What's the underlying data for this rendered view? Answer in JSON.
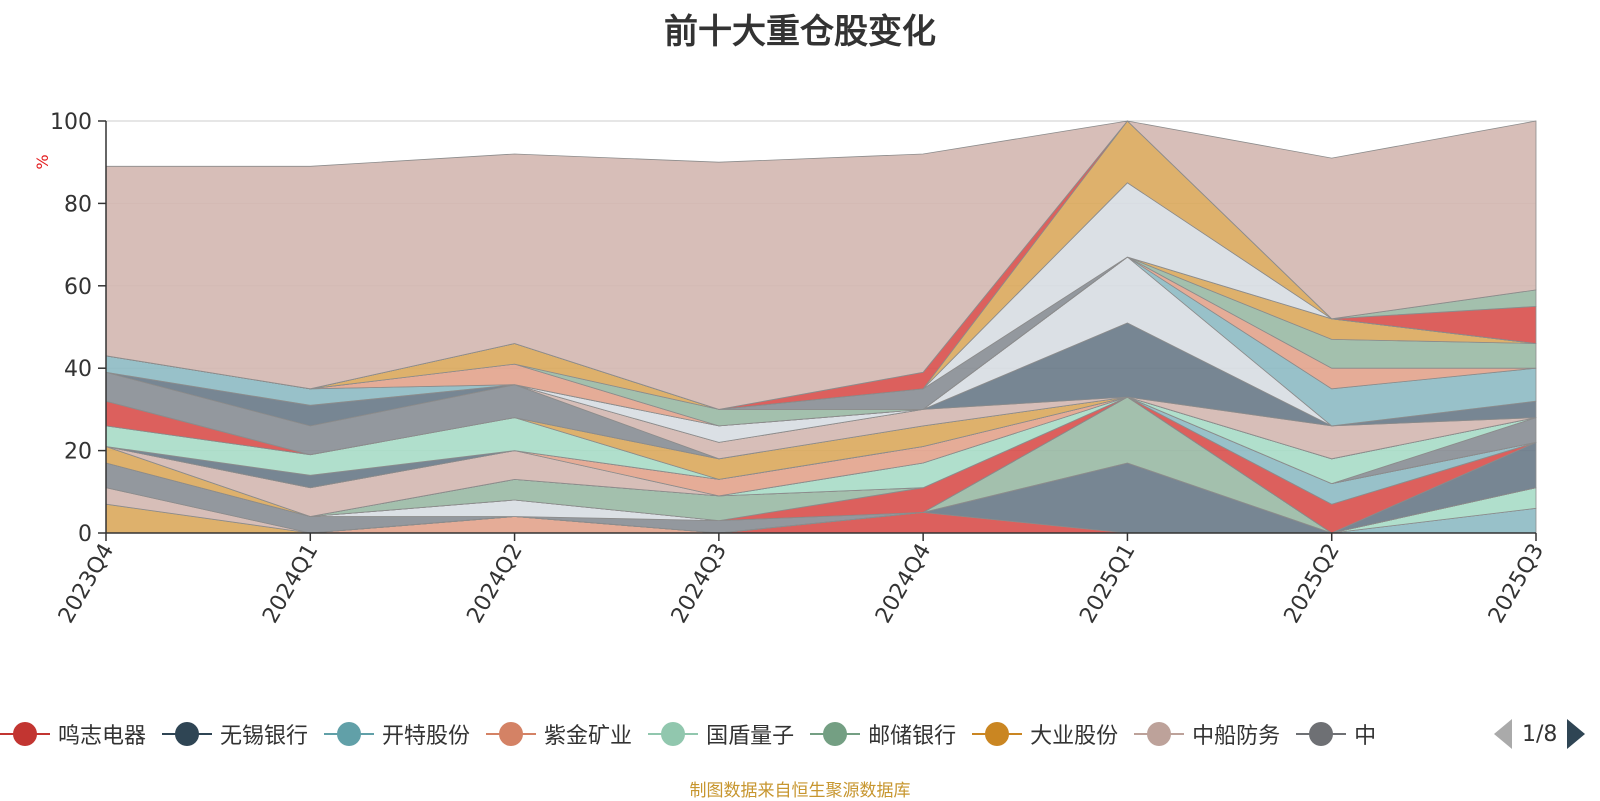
{
  "chart_data": {
    "type": "area",
    "stacked": true,
    "title": "前十大重仓股变化",
    "ylabel": "%",
    "ylim": [
      0,
      100
    ],
    "yticks": [
      0,
      20,
      40,
      60,
      80,
      100
    ],
    "grid": true,
    "categories": [
      "2023Q4",
      "2024Q1",
      "2024Q2",
      "2024Q3",
      "2024Q4",
      "2025Q1",
      "2025Q2",
      "2025Q3"
    ],
    "series": [
      {
        "name": "鸣志电器",
        "color": "#d9534f",
        "values": [
          0,
          0,
          0,
          0,
          5,
          0,
          0,
          0
        ]
      },
      {
        "name": "无锡银行",
        "color": "#6b7c8a",
        "values": [
          0,
          0,
          0,
          0,
          0,
          17,
          0,
          0
        ]
      },
      {
        "name": "开特股份",
        "color": "#8fbcc4",
        "values": [
          0,
          0,
          0,
          0,
          0,
          0,
          0,
          6
        ]
      },
      {
        "name": "紫金矿业",
        "color": "#e3a58e",
        "values": [
          0,
          0,
          4,
          0,
          0,
          0,
          0,
          0
        ]
      },
      {
        "name": "国盾量子",
        "color": "#a9dcc8",
        "values": [
          0,
          0,
          0,
          0,
          0,
          0,
          0,
          5
        ]
      },
      {
        "name": "邮储银行",
        "color": "#9bbba6",
        "values": [
          0,
          0,
          0,
          0,
          0,
          16,
          0,
          0
        ]
      },
      {
        "name": "大业股份",
        "color": "#dbaa5f",
        "values": [
          7,
          0,
          0,
          0,
          0,
          0,
          0,
          0
        ]
      },
      {
        "name": "中船防务",
        "color": "#d4b8b2",
        "values": [
          4,
          0,
          0,
          0,
          0,
          0,
          0,
          0
        ]
      },
      {
        "name": "",
        "color": "#8a8f96",
        "values": [
          6,
          4,
          0,
          3,
          0,
          0,
          0,
          0
        ]
      },
      {
        "name": "",
        "color": "#d8dde3",
        "values": [
          0,
          0,
          4,
          0,
          0,
          0,
          0,
          0
        ]
      },
      {
        "name": "",
        "color": "#6b7c8a",
        "values": [
          0,
          0,
          0,
          0,
          0,
          0,
          0,
          11
        ]
      },
      {
        "name": "",
        "color": "#d9534f",
        "values": [
          0,
          0,
          0,
          0,
          6,
          0,
          7,
          0
        ]
      },
      {
        "name": "",
        "color": "#9bbba6",
        "values": [
          0,
          0,
          5,
          6,
          0,
          0,
          0,
          0
        ]
      },
      {
        "name": "",
        "color": "#8fbcc4",
        "values": [
          0,
          0,
          0,
          0,
          0,
          0,
          5,
          0
        ]
      },
      {
        "name": "",
        "color": "#dbaa5f",
        "values": [
          4,
          0,
          0,
          0,
          0,
          0,
          0,
          0
        ]
      },
      {
        "name": "",
        "color": "#a9dcc8",
        "values": [
          0,
          0,
          0,
          0,
          6,
          0,
          0,
          0
        ]
      },
      {
        "name": "",
        "color": "#d4b8b2",
        "values": [
          0,
          7,
          7,
          0,
          0,
          0,
          0,
          0
        ]
      },
      {
        "name": "",
        "color": "#e3a58e",
        "values": [
          0,
          0,
          0,
          4,
          4,
          0,
          0,
          0
        ]
      },
      {
        "name": "",
        "color": "#8a8f96",
        "values": [
          0,
          0,
          0,
          0,
          0,
          0,
          0,
          6
        ]
      },
      {
        "name": "",
        "color": "#6b7c8a",
        "values": [
          0,
          3,
          0,
          0,
          0,
          0,
          0,
          0
        ]
      },
      {
        "name": "",
        "color": "#a9dcc8",
        "values": [
          5,
          5,
          8,
          0,
          0,
          0,
          6,
          0
        ]
      },
      {
        "name": "",
        "color": "#dbaa5f",
        "values": [
          0,
          0,
          0,
          5,
          5,
          0,
          0,
          0
        ]
      },
      {
        "name": "",
        "color": "#d9534f",
        "values": [
          6,
          0,
          0,
          0,
          0,
          0,
          0,
          0
        ]
      },
      {
        "name": "",
        "color": "#8a8f96",
        "values": [
          7,
          7,
          8,
          0,
          0,
          0,
          0,
          0
        ]
      },
      {
        "name": "",
        "color": "#d4b8b2",
        "values": [
          0,
          0,
          0,
          4,
          4,
          0,
          8,
          0
        ]
      },
      {
        "name": "",
        "color": "#6b7c8a",
        "values": [
          0,
          5,
          0,
          0,
          0,
          18,
          0,
          4
        ]
      },
      {
        "name": "",
        "color": "#d8dde3",
        "values": [
          0,
          0,
          0,
          4,
          0,
          16,
          0,
          0
        ]
      },
      {
        "name": "",
        "color": "#8fbcc4",
        "values": [
          4,
          4,
          0,
          0,
          0,
          0,
          9,
          8
        ]
      },
      {
        "name": "",
        "color": "#e3a58e",
        "values": [
          0,
          0,
          5,
          0,
          0,
          0,
          5,
          0
        ]
      },
      {
        "name": "",
        "color": "#9bbba6",
        "values": [
          0,
          0,
          0,
          4,
          0,
          0,
          7,
          6
        ]
      },
      {
        "name": "",
        "color": "#dbaa5f",
        "values": [
          0,
          0,
          5,
          0,
          0,
          0,
          5,
          0
        ]
      },
      {
        "name": "",
        "color": "#8a8f96",
        "values": [
          0,
          0,
          0,
          0,
          5,
          0,
          0,
          0
        ]
      },
      {
        "name": "",
        "color": "#d8dde3",
        "values": [
          0,
          0,
          0,
          0,
          0,
          18,
          0,
          0
        ]
      },
      {
        "name": "",
        "color": "#dbaa5f",
        "values": [
          0,
          0,
          0,
          0,
          0,
          15,
          0,
          0
        ]
      },
      {
        "name": "",
        "color": "#d9534f",
        "values": [
          0,
          0,
          0,
          0,
          4,
          0,
          0,
          9
        ]
      },
      {
        "name": "",
        "color": "#9bbba6",
        "values": [
          0,
          0,
          0,
          0,
          0,
          0,
          0,
          4
        ]
      },
      {
        "name": "",
        "color": "#d4b8b2",
        "values": [
          46,
          54,
          46,
          60,
          53,
          0,
          39,
          41
        ]
      }
    ]
  },
  "legend": {
    "items": [
      {
        "name": "鸣志电器",
        "color": "#c23531"
      },
      {
        "name": "无锡银行",
        "color": "#2f4554"
      },
      {
        "name": "开特股份",
        "color": "#61a0a8"
      },
      {
        "name": "紫金矿业",
        "color": "#d48265"
      },
      {
        "name": "国盾量子",
        "color": "#91c7ae"
      },
      {
        "name": "邮储银行",
        "color": "#749f83"
      },
      {
        "name": "大业股份",
        "color": "#ca8622"
      },
      {
        "name": "中船防务",
        "color": "#bda29a"
      },
      {
        "name": "中",
        "color": "#6e7074"
      }
    ],
    "page": "1/8"
  },
  "footer": "制图数据来自恒生聚源数据库"
}
